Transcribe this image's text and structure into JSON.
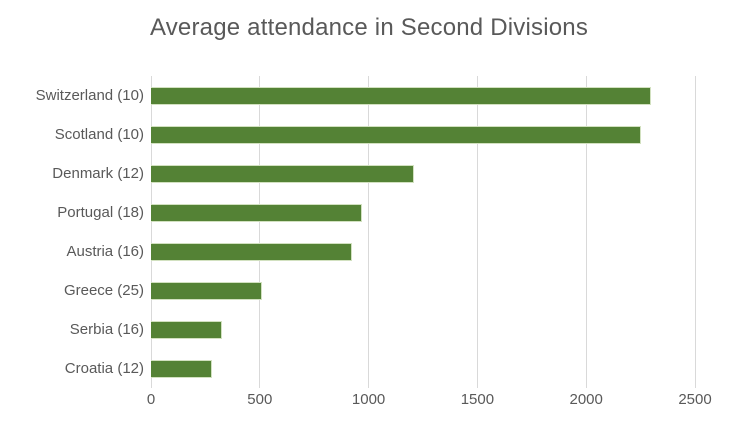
{
  "chart_data": {
    "type": "bar",
    "orientation": "horizontal",
    "title": "Average attendance in Second Divisions",
    "categories": [
      "Switzerland (10)",
      "Scotland (10)",
      "Denmark (12)",
      "Portugal (18)",
      "Austria (16)",
      "Greece (25)",
      "Serbia (16)",
      "Croatia (12)"
    ],
    "values": [
      2300,
      2250,
      1210,
      970,
      925,
      510,
      325,
      280
    ],
    "xlabel": "",
    "ylabel": "",
    "xlim": [
      0,
      2500
    ],
    "x_ticks": [
      0,
      500,
      1000,
      1500,
      2000,
      2500
    ],
    "grid": true,
    "legend_position": "none",
    "bar_color": "#548235",
    "bar_border_color": "#d2e1c0",
    "grid_color": "#d9d9d9",
    "text_color": "#595959",
    "background_color": "#ffffff"
  }
}
